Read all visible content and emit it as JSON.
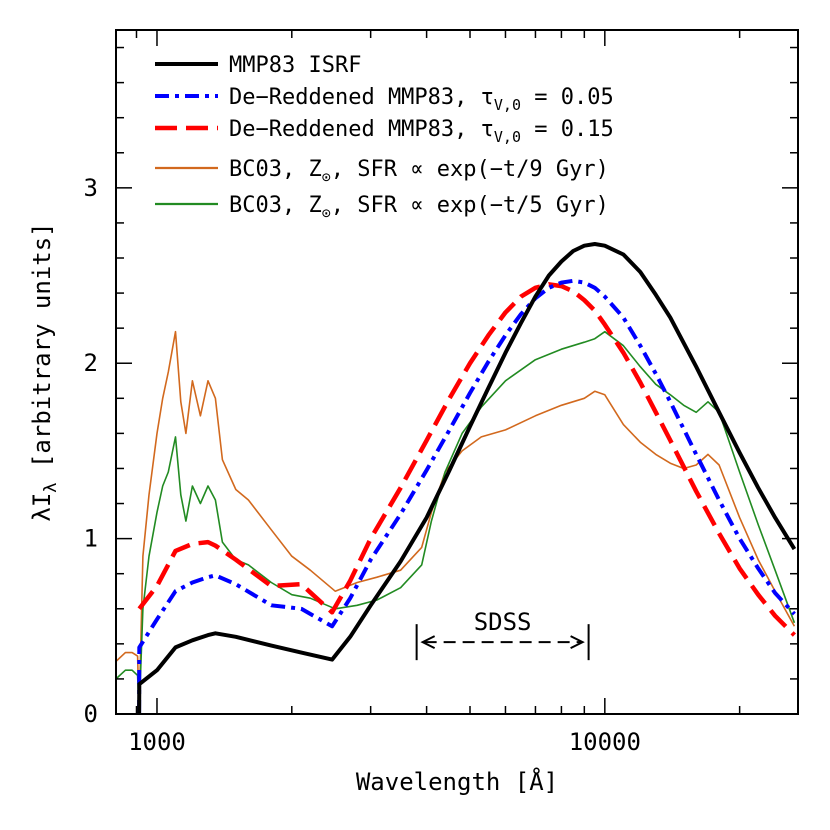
{
  "chart_data": {
    "type": "line",
    "title": "",
    "xlabel": "Wavelength [Å]",
    "ylabel": "λI_λ [arbitrary units]",
    "xscale": "log",
    "xlim": [
      810,
      27000
    ],
    "ylim": [
      0,
      3.9
    ],
    "grid": false,
    "legend_position": "top-left",
    "x_ticks": [
      {
        "value": 1000,
        "label": "1000"
      },
      {
        "value": 10000,
        "label": "10000"
      }
    ],
    "y_ticks": [
      {
        "value": 0,
        "label": "0"
      },
      {
        "value": 1,
        "label": "1"
      },
      {
        "value": 2,
        "label": "2"
      },
      {
        "value": 3,
        "label": "3"
      }
    ],
    "annotation": {
      "label": "SDSS",
      "x_start": 3800,
      "x_end": 9200,
      "y": 0.25
    },
    "series": [
      {
        "name": "MMP83 ISRF",
        "color": "#000000",
        "style": "solid-thick",
        "x": [
          912,
          913,
          1000,
          1100,
          1200,
          1300,
          1350,
          1500,
          1800,
          2100,
          2460,
          2700,
          3000,
          3500,
          4000,
          4500,
          5000,
          5500,
          6000,
          6500,
          7000,
          7500,
          8000,
          8500,
          9000,
          9500,
          10000,
          11000,
          12000,
          13000,
          14000,
          16000,
          18000,
          20000,
          22000,
          24000,
          26500
        ],
        "y": [
          0.0,
          0.17,
          0.25,
          0.38,
          0.42,
          0.45,
          0.46,
          0.44,
          0.39,
          0.35,
          0.31,
          0.44,
          0.62,
          0.87,
          1.12,
          1.39,
          1.64,
          1.86,
          2.06,
          2.23,
          2.38,
          2.5,
          2.58,
          2.64,
          2.67,
          2.68,
          2.67,
          2.62,
          2.52,
          2.39,
          2.26,
          1.98,
          1.72,
          1.49,
          1.29,
          1.12,
          0.94
        ]
      },
      {
        "name": "De−Reddened MMP83, τ_V,0 = 0.05",
        "color": "#0000ff",
        "style": "dash-dot-thick",
        "x": [
          912,
          913,
          1000,
          1100,
          1200,
          1300,
          1350,
          1500,
          1800,
          2100,
          2460,
          2700,
          3000,
          3500,
          4000,
          4500,
          5000,
          5500,
          6000,
          6500,
          7000,
          7500,
          8000,
          8500,
          9000,
          9500,
          10000,
          11000,
          12000,
          13000,
          14000,
          16000,
          18000,
          20000,
          22000,
          24000,
          26500
        ],
        "y": [
          0.0,
          0.38,
          0.54,
          0.7,
          0.75,
          0.78,
          0.79,
          0.74,
          0.62,
          0.6,
          0.5,
          0.66,
          0.88,
          1.14,
          1.39,
          1.62,
          1.83,
          2.01,
          2.16,
          2.28,
          2.37,
          2.43,
          2.46,
          2.47,
          2.46,
          2.43,
          2.38,
          2.26,
          2.1,
          1.94,
          1.78,
          1.48,
          1.22,
          1.0,
          0.83,
          0.69,
          0.57
        ]
      },
      {
        "name": "De−Reddened MMP83, τ_V,0 = 0.15",
        "color": "#ff0000",
        "style": "dashed-thick",
        "x": [
          913,
          1000,
          1100,
          1200,
          1300,
          1350,
          1500,
          1800,
          2100,
          2460,
          2700,
          3000,
          3500,
          4000,
          4500,
          5000,
          5500,
          6000,
          6500,
          7000,
          7500,
          8000,
          8500,
          9000,
          9500,
          10000,
          11000,
          12000,
          13000,
          14000,
          16000,
          18000,
          20000,
          22000,
          24000,
          26500
        ],
        "y": [
          0.6,
          0.73,
          0.93,
          0.97,
          0.98,
          0.96,
          0.88,
          0.73,
          0.74,
          0.58,
          0.76,
          1.0,
          1.29,
          1.56,
          1.8,
          2.0,
          2.16,
          2.29,
          2.38,
          2.43,
          2.45,
          2.44,
          2.41,
          2.36,
          2.3,
          2.22,
          2.06,
          1.89,
          1.72,
          1.56,
          1.27,
          1.03,
          0.83,
          0.68,
          0.56,
          0.45
        ]
      },
      {
        "name": "BC03, Z_⊙, SFR ∝ exp(−t/9 Gyr)",
        "color": "#d2691e",
        "style": "solid-thin",
        "x": [
          810,
          850,
          880,
          905,
          912,
          930,
          960,
          1000,
          1030,
          1060,
          1100,
          1130,
          1160,
          1200,
          1250,
          1300,
          1350,
          1400,
          1500,
          1600,
          1800,
          2000,
          2200,
          2500,
          2800,
          3100,
          3500,
          3900,
          4100,
          4400,
          4800,
          5300,
          6000,
          7000,
          8000,
          9000,
          9500,
          10000,
          11000,
          12000,
          13000,
          14000,
          15000,
          16000,
          17000,
          18000,
          20000,
          22000,
          24000,
          26500
        ],
        "y": [
          0.3,
          0.35,
          0.35,
          0.33,
          0.0,
          0.9,
          1.25,
          1.6,
          1.8,
          1.95,
          2.18,
          1.78,
          1.6,
          1.9,
          1.7,
          1.9,
          1.8,
          1.45,
          1.28,
          1.22,
          1.05,
          0.9,
          0.82,
          0.7,
          0.75,
          0.78,
          0.82,
          0.95,
          1.15,
          1.38,
          1.5,
          1.58,
          1.62,
          1.7,
          1.76,
          1.8,
          1.84,
          1.82,
          1.65,
          1.55,
          1.48,
          1.43,
          1.4,
          1.42,
          1.48,
          1.42,
          1.12,
          0.88,
          0.7,
          0.5
        ]
      },
      {
        "name": "BC03, Z_⊙, SFR ∝ exp(−t/5 Gyr)",
        "color": "#228b22",
        "style": "solid-thin",
        "x": [
          810,
          850,
          880,
          905,
          912,
          930,
          960,
          1000,
          1030,
          1060,
          1100,
          1130,
          1160,
          1200,
          1250,
          1300,
          1350,
          1400,
          1500,
          1600,
          1800,
          2000,
          2200,
          2500,
          2800,
          3100,
          3500,
          3900,
          4100,
          4400,
          4800,
          5300,
          6000,
          7000,
          8000,
          9000,
          9500,
          10000,
          11000,
          12000,
          13000,
          14000,
          15000,
          16000,
          17000,
          18000,
          20000,
          22000,
          24000,
          26500
        ],
        "y": [
          0.2,
          0.25,
          0.25,
          0.22,
          0.0,
          0.6,
          0.9,
          1.15,
          1.3,
          1.38,
          1.58,
          1.25,
          1.1,
          1.3,
          1.2,
          1.3,
          1.22,
          0.98,
          0.88,
          0.85,
          0.75,
          0.68,
          0.66,
          0.6,
          0.62,
          0.65,
          0.72,
          0.85,
          1.1,
          1.38,
          1.6,
          1.75,
          1.9,
          2.02,
          2.08,
          2.12,
          2.14,
          2.18,
          2.1,
          1.98,
          1.88,
          1.82,
          1.76,
          1.72,
          1.78,
          1.72,
          1.38,
          1.08,
          0.82,
          0.52
        ]
      }
    ],
    "legend": [
      {
        "text": "MMP83 ISRF"
      },
      {
        "text": "De−Reddened MMP83, τ",
        "sub": "V,0",
        "tail": " = 0.05"
      },
      {
        "text": "De−Reddened MMP83, τ",
        "sub": "V,0",
        "tail": " = 0.15"
      },
      {
        "text": "BC03, Z",
        "sub": "⊙",
        "tail": ", SFR ∝ exp(−t/9 Gyr)"
      },
      {
        "text": "BC03, Z",
        "sub": "⊙",
        "tail": ", SFR ∝ exp(−t/5 Gyr)"
      }
    ]
  }
}
